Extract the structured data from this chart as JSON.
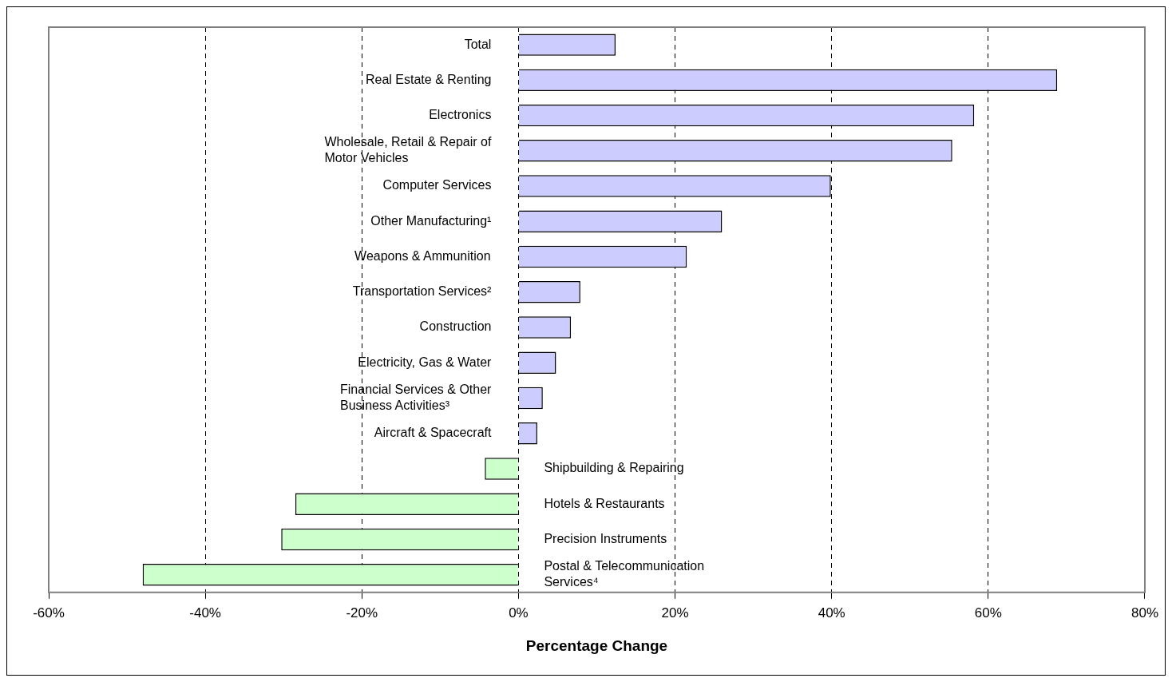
{
  "chart_data": {
    "type": "bar",
    "orientation": "horizontal",
    "xlabel": "Percentage Change",
    "categories": [
      "Total",
      "Real Estate & Renting",
      "Electronics",
      "Wholesale, Retail & Repair of Motor Vehicles",
      "Computer Services",
      "Other Manufacturing¹",
      "Weapons & Ammunition",
      "Transportation Services²",
      "Construction",
      "Electricity, Gas & Water",
      "Financial Services & Other Business Activities³",
      "Aircraft & Spacecraft",
      "Shipbuilding & Repairing",
      "Hotels & Restaurants",
      "Precision Instruments",
      "Postal & Telecommunication Services⁴"
    ],
    "values": [
      12.4,
      68.8,
      58.2,
      55.4,
      39.9,
      26.0,
      21.5,
      7.9,
      6.7,
      4.8,
      3.1,
      2.4,
      -4.3,
      -28.5,
      -30.3,
      -48.0
    ],
    "colors": [
      "#ccccff",
      "#ccccff",
      "#ccccff",
      "#ccccff",
      "#ccccff",
      "#ccccff",
      "#ccccff",
      "#ccccff",
      "#ccccff",
      "#ccccff",
      "#ccccff",
      "#ccccff",
      "#ccffcc",
      "#ccffcc",
      "#ccffcc",
      "#ccffcc"
    ],
    "xlim": [
      -60,
      80
    ],
    "xticks": [
      {
        "value": -60,
        "label": "-60%"
      },
      {
        "value": -40,
        "label": "-40%"
      },
      {
        "value": -20,
        "label": "-20%"
      },
      {
        "value": 0,
        "label": "0%"
      },
      {
        "value": 20,
        "label": "20%"
      },
      {
        "value": 40,
        "label": "40%"
      },
      {
        "value": 60,
        "label": "60%"
      },
      {
        "value": 80,
        "label": "80%"
      }
    ],
    "grid": "x",
    "legend": false
  }
}
